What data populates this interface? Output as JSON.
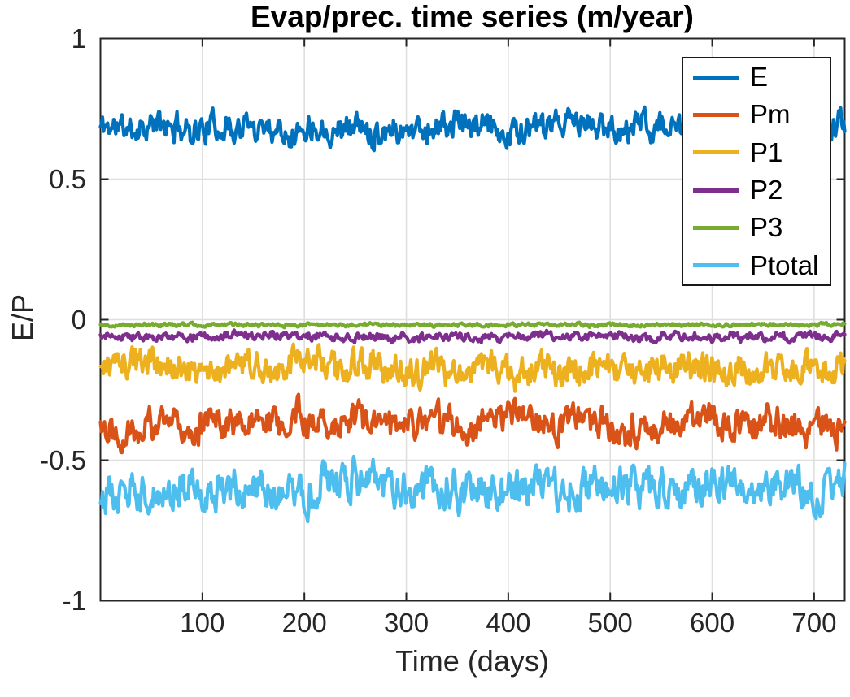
{
  "chart_data": {
    "type": "line",
    "title": "Evap/prec. time series (m/year)",
    "xlabel": "Time (days)",
    "ylabel": "E/P",
    "xlim": [
      0,
      730
    ],
    "ylim": [
      -1,
      1
    ],
    "xticks": [
      100,
      200,
      300,
      400,
      500,
      600,
      700
    ],
    "yticks": [
      -1,
      -0.5,
      0,
      0.5,
      1
    ],
    "ytick_labels": [
      "-1",
      "-0.5",
      "0",
      "0.5",
      "1"
    ],
    "grid": true,
    "legend_position": "northeast",
    "n_points": 730,
    "axis_color": "#262626",
    "grid_color": "#dedede",
    "background": "#ffffff",
    "series": [
      {
        "name": "E",
        "color": "#0072BD",
        "mean": 0.685,
        "std": 0.032,
        "seed": 11
      },
      {
        "name": "Pm",
        "color": "#D95319",
        "mean": -0.37,
        "std": 0.036,
        "seed": 22
      },
      {
        "name": "P1",
        "color": "#EDB120",
        "mean": -0.175,
        "std": 0.035,
        "seed": 33
      },
      {
        "name": "P2",
        "color": "#7E2F8E",
        "mean": -0.06,
        "std": 0.01,
        "seed": 44
      },
      {
        "name": "P3",
        "color": "#77AC30",
        "mean": -0.018,
        "std": 0.004,
        "seed": 55
      },
      {
        "name": "Ptotal",
        "color": "#4DBEEE",
        "mean": -0.6,
        "std": 0.044,
        "seed": 66
      }
    ]
  }
}
